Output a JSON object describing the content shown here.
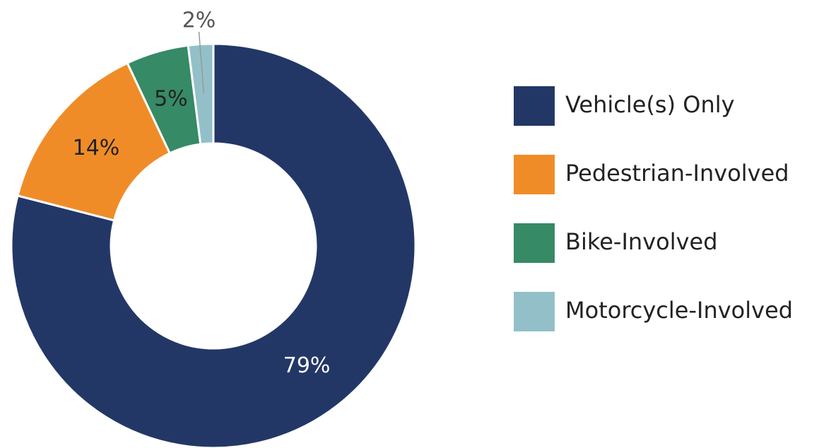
{
  "chart_data": {
    "type": "donut",
    "categories": [
      "Vehicle(s) Only",
      "Pedestrian-Involved",
      "Bike-Involved",
      "Motorcycle-Involved"
    ],
    "values": [
      79,
      14,
      5,
      2
    ],
    "value_labels": [
      "79%",
      "14%",
      "5%",
      "2%"
    ],
    "colors": [
      "#233767",
      "#f08c28",
      "#368a66",
      "#93c0c8"
    ]
  }
}
